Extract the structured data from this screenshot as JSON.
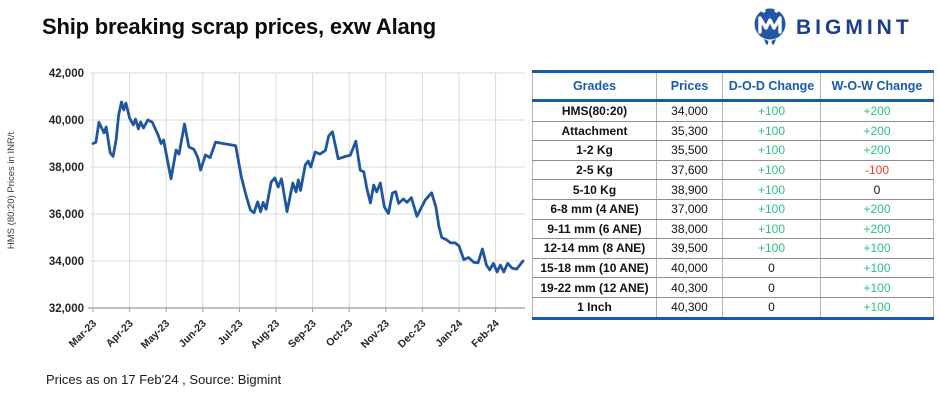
{
  "title": "Ship breaking scrap prices, exw Alang",
  "logo": {
    "text": "BIGMINT",
    "icon_color": "#2456a6",
    "text_color": "#1b3e8f"
  },
  "footer_note": "Prices as on 17 Feb'24 , Source: Bigmint",
  "colors": {
    "accent_blue": "#1a5ba8",
    "line_blue": "#1e56a0",
    "positive_green": "#2ec27e",
    "negative_red": "#ff3232",
    "neutral_black": "#111111",
    "gridline_gray": "#d9d9d9",
    "axis_gray": "#9b9b9b",
    "tick_text": "#262626"
  },
  "chart_data": {
    "type": "line",
    "series_name": "HMS (80:20) ship breaking scrap price, exw Alang",
    "ylabel": "HMS (80:20) Prices in INR/t",
    "ylim": [
      32000,
      42000
    ],
    "y_tick_step": 2000,
    "y_tick_labels": [
      "32,000",
      "34,000",
      "36,000",
      "38,000",
      "40,000",
      "42,000"
    ],
    "x_tick_labels": [
      "Mar-23",
      "Apr-23",
      "May-23",
      "Jun-23",
      "Jul-23",
      "Aug-23",
      "Sep-23",
      "Oct-23",
      "Nov-23",
      "Dec-23",
      "Jan-24",
      "Feb-24"
    ],
    "grid": true,
    "legend": "none",
    "line_color": "#1e56a0",
    "points_note": "x = months after Mar-2023 (0=Mar-23 tick, 11=Feb-24 tick, last point = 17 Feb'24), y = INR/t",
    "points": [
      [
        0,
        39000
      ],
      [
        0.08,
        39050
      ],
      [
        0.16,
        39900
      ],
      [
        0.3,
        39450
      ],
      [
        0.36,
        39700
      ],
      [
        0.47,
        38600
      ],
      [
        0.55,
        38450
      ],
      [
        0.63,
        39150
      ],
      [
        0.7,
        40200
      ],
      [
        0.78,
        40770
      ],
      [
        0.84,
        40430
      ],
      [
        0.9,
        40720
      ],
      [
        1.0,
        40085
      ],
      [
        1.1,
        39790
      ],
      [
        1.16,
        40040
      ],
      [
        1.24,
        39620
      ],
      [
        1.3,
        39915
      ],
      [
        1.38,
        39660
      ],
      [
        1.5,
        40000
      ],
      [
        1.62,
        39900
      ],
      [
        1.78,
        39360
      ],
      [
        1.86,
        39000
      ],
      [
        1.93,
        39150
      ],
      [
        2.13,
        37500
      ],
      [
        2.27,
        38720
      ],
      [
        2.35,
        38550
      ],
      [
        2.5,
        39830
      ],
      [
        2.62,
        38850
      ],
      [
        2.76,
        38750
      ],
      [
        2.87,
        38380
      ],
      [
        2.94,
        37870
      ],
      [
        3.07,
        38510
      ],
      [
        3.2,
        38400
      ],
      [
        3.35,
        39060
      ],
      [
        3.55,
        39000
      ],
      [
        3.75,
        38950
      ],
      [
        3.9,
        38900
      ],
      [
        4.05,
        37600
      ],
      [
        4.18,
        36800
      ],
      [
        4.3,
        36170
      ],
      [
        4.4,
        36050
      ],
      [
        4.5,
        36520
      ],
      [
        4.58,
        36100
      ],
      [
        4.65,
        36500
      ],
      [
        4.73,
        36200
      ],
      [
        4.87,
        37360
      ],
      [
        4.97,
        37530
      ],
      [
        5.06,
        37150
      ],
      [
        5.15,
        37500
      ],
      [
        5.3,
        36100
      ],
      [
        5.46,
        37320
      ],
      [
        5.55,
        36940
      ],
      [
        5.61,
        37450
      ],
      [
        5.67,
        37000
      ],
      [
        5.8,
        38090
      ],
      [
        5.88,
        38250
      ],
      [
        5.95,
        38000
      ],
      [
        6.07,
        38640
      ],
      [
        6.2,
        38550
      ],
      [
        6.35,
        38700
      ],
      [
        6.44,
        39320
      ],
      [
        6.54,
        39500
      ],
      [
        6.7,
        38350
      ],
      [
        6.9,
        38450
      ],
      [
        7.03,
        38500
      ],
      [
        7.18,
        39100
      ],
      [
        7.3,
        37870
      ],
      [
        7.4,
        37790
      ],
      [
        7.48,
        37100
      ],
      [
        7.58,
        36470
      ],
      [
        7.67,
        37230
      ],
      [
        7.75,
        36940
      ],
      [
        7.85,
        37320
      ],
      [
        7.96,
        36300
      ],
      [
        8.07,
        36020
      ],
      [
        8.18,
        36890
      ],
      [
        8.27,
        36950
      ],
      [
        8.35,
        36450
      ],
      [
        8.48,
        36640
      ],
      [
        8.58,
        36500
      ],
      [
        8.7,
        36700
      ],
      [
        8.85,
        35900
      ],
      [
        9.08,
        36600
      ],
      [
        9.25,
        36900
      ],
      [
        9.37,
        36300
      ],
      [
        9.45,
        35470
      ],
      [
        9.53,
        35000
      ],
      [
        9.66,
        34900
      ],
      [
        9.77,
        34770
      ],
      [
        9.9,
        34770
      ],
      [
        10.0,
        34640
      ],
      [
        10.13,
        34060
      ],
      [
        10.26,
        34150
      ],
      [
        10.4,
        33950
      ],
      [
        10.52,
        33920
      ],
      [
        10.64,
        34510
      ],
      [
        10.75,
        33830
      ],
      [
        10.84,
        33620
      ],
      [
        10.94,
        33900
      ],
      [
        11.04,
        33530
      ],
      [
        11.13,
        33830
      ],
      [
        11.22,
        33530
      ],
      [
        11.33,
        33900
      ],
      [
        11.45,
        33700
      ],
      [
        11.57,
        33650
      ],
      [
        11.75,
        34000
      ]
    ]
  },
  "table": {
    "headers": [
      "Grades",
      "Prices",
      "D-O-D Change",
      "W-O-W Change"
    ],
    "rows": [
      {
        "grade": "HMS(80:20)",
        "price": "34,000",
        "dod": "+100",
        "wow": "+200"
      },
      {
        "grade": "Attachment",
        "price": "35,300",
        "dod": "+100",
        "wow": "+200"
      },
      {
        "grade": "1-2 Kg",
        "price": "35,500",
        "dod": "+100",
        "wow": "+200"
      },
      {
        "grade": "2-5 Kg",
        "price": "37,600",
        "dod": "+100",
        "wow": "-100"
      },
      {
        "grade": "5-10 Kg",
        "price": "38,900",
        "dod": "+100",
        "wow": "0"
      },
      {
        "grade": "6-8 mm (4 ANE)",
        "price": "37,000",
        "dod": "+100",
        "wow": "+200"
      },
      {
        "grade": "9-11 mm (6 ANE)",
        "price": "38,000",
        "dod": "+100",
        "wow": "+200"
      },
      {
        "grade": "12-14 mm (8 ANE)",
        "price": "39,500",
        "dod": "+100",
        "wow": "+100"
      },
      {
        "grade": "15-18 mm (10 ANE)",
        "price": "40,000",
        "dod": "0",
        "wow": "+100"
      },
      {
        "grade": "19-22 mm (12 ANE)",
        "price": "40,300",
        "dod": "0",
        "wow": "+100"
      },
      {
        "grade": "1 Inch",
        "price": "40,300",
        "dod": "0",
        "wow": "+100"
      }
    ]
  }
}
